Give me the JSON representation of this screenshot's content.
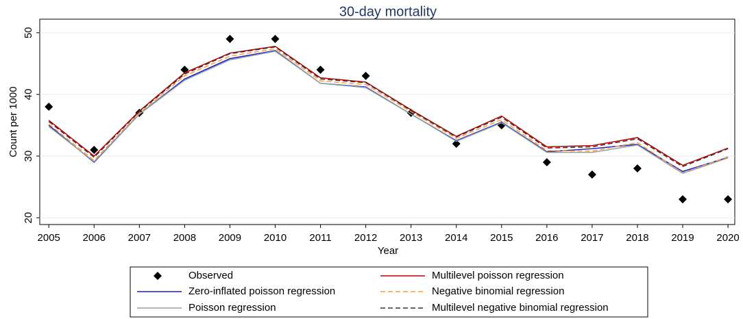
{
  "chart_data": {
    "type": "line",
    "title": "30-day mortality",
    "xlabel": "Year",
    "ylabel": "Count per 1000",
    "x": [
      2005,
      2006,
      2007,
      2008,
      2009,
      2010,
      2011,
      2012,
      2013,
      2014,
      2015,
      2016,
      2017,
      2018,
      2019,
      2020
    ],
    "xlim": [
      2004.8,
      2020.15
    ],
    "xticks": [
      2005,
      2006,
      2007,
      2008,
      2009,
      2010,
      2011,
      2012,
      2013,
      2014,
      2015,
      2016,
      2017,
      2018,
      2019,
      2020
    ],
    "ylim": [
      18.9,
      52.2
    ],
    "yticks": [
      20,
      30,
      40,
      50
    ],
    "grid": true,
    "legend": "bottom",
    "series": [
      {
        "name": "Observed",
        "color": "#000000",
        "style": "markers",
        "values": [
          38,
          31,
          37,
          44,
          49,
          49,
          44,
          43,
          37,
          32,
          35,
          29,
          27,
          28,
          23,
          23
        ]
      },
      {
        "name": "Multilevel poisson regression",
        "color": "#c00000",
        "style": "solid",
        "values": [
          35.8,
          30,
          37.3,
          43.5,
          46.7,
          47.8,
          42.7,
          42,
          37.5,
          33.2,
          36.5,
          31.5,
          31.7,
          33,
          28.5,
          31.3
        ]
      },
      {
        "name": "Zero-inflated poisson regression",
        "color": "#1a1acc",
        "style": "solid",
        "values": [
          35,
          29,
          36.8,
          42.5,
          45.8,
          47.1,
          41.8,
          41.2,
          36.8,
          32.5,
          35.5,
          30.7,
          31.2,
          31.9,
          27.5,
          29.8
        ]
      },
      {
        "name": "Negative binomial regression",
        "color": "#ff9a3c",
        "style": "dash",
        "values": [
          35.2,
          29.3,
          37,
          43,
          46.2,
          47.4,
          42.2,
          41.6,
          37.2,
          32.9,
          35.9,
          30.9,
          30.8,
          32.2,
          27.3,
          29.9
        ]
      },
      {
        "name": "Poisson regression",
        "color": "#8fa39a",
        "style": "solid",
        "values": [
          34.8,
          29.1,
          36.8,
          42.3,
          45.6,
          47,
          41.8,
          41.1,
          36.8,
          32.4,
          35.4,
          30.6,
          30.6,
          31.8,
          27.2,
          29.7
        ]
      },
      {
        "name": "Multilevel negative binomial regression",
        "color": "#333333",
        "style": "dash",
        "values": [
          35.6,
          29.8,
          37.2,
          43.3,
          46.6,
          47.7,
          42.5,
          41.9,
          37.4,
          33.1,
          36.3,
          31.3,
          31.5,
          32.8,
          28.3,
          31.2
        ]
      }
    ]
  }
}
